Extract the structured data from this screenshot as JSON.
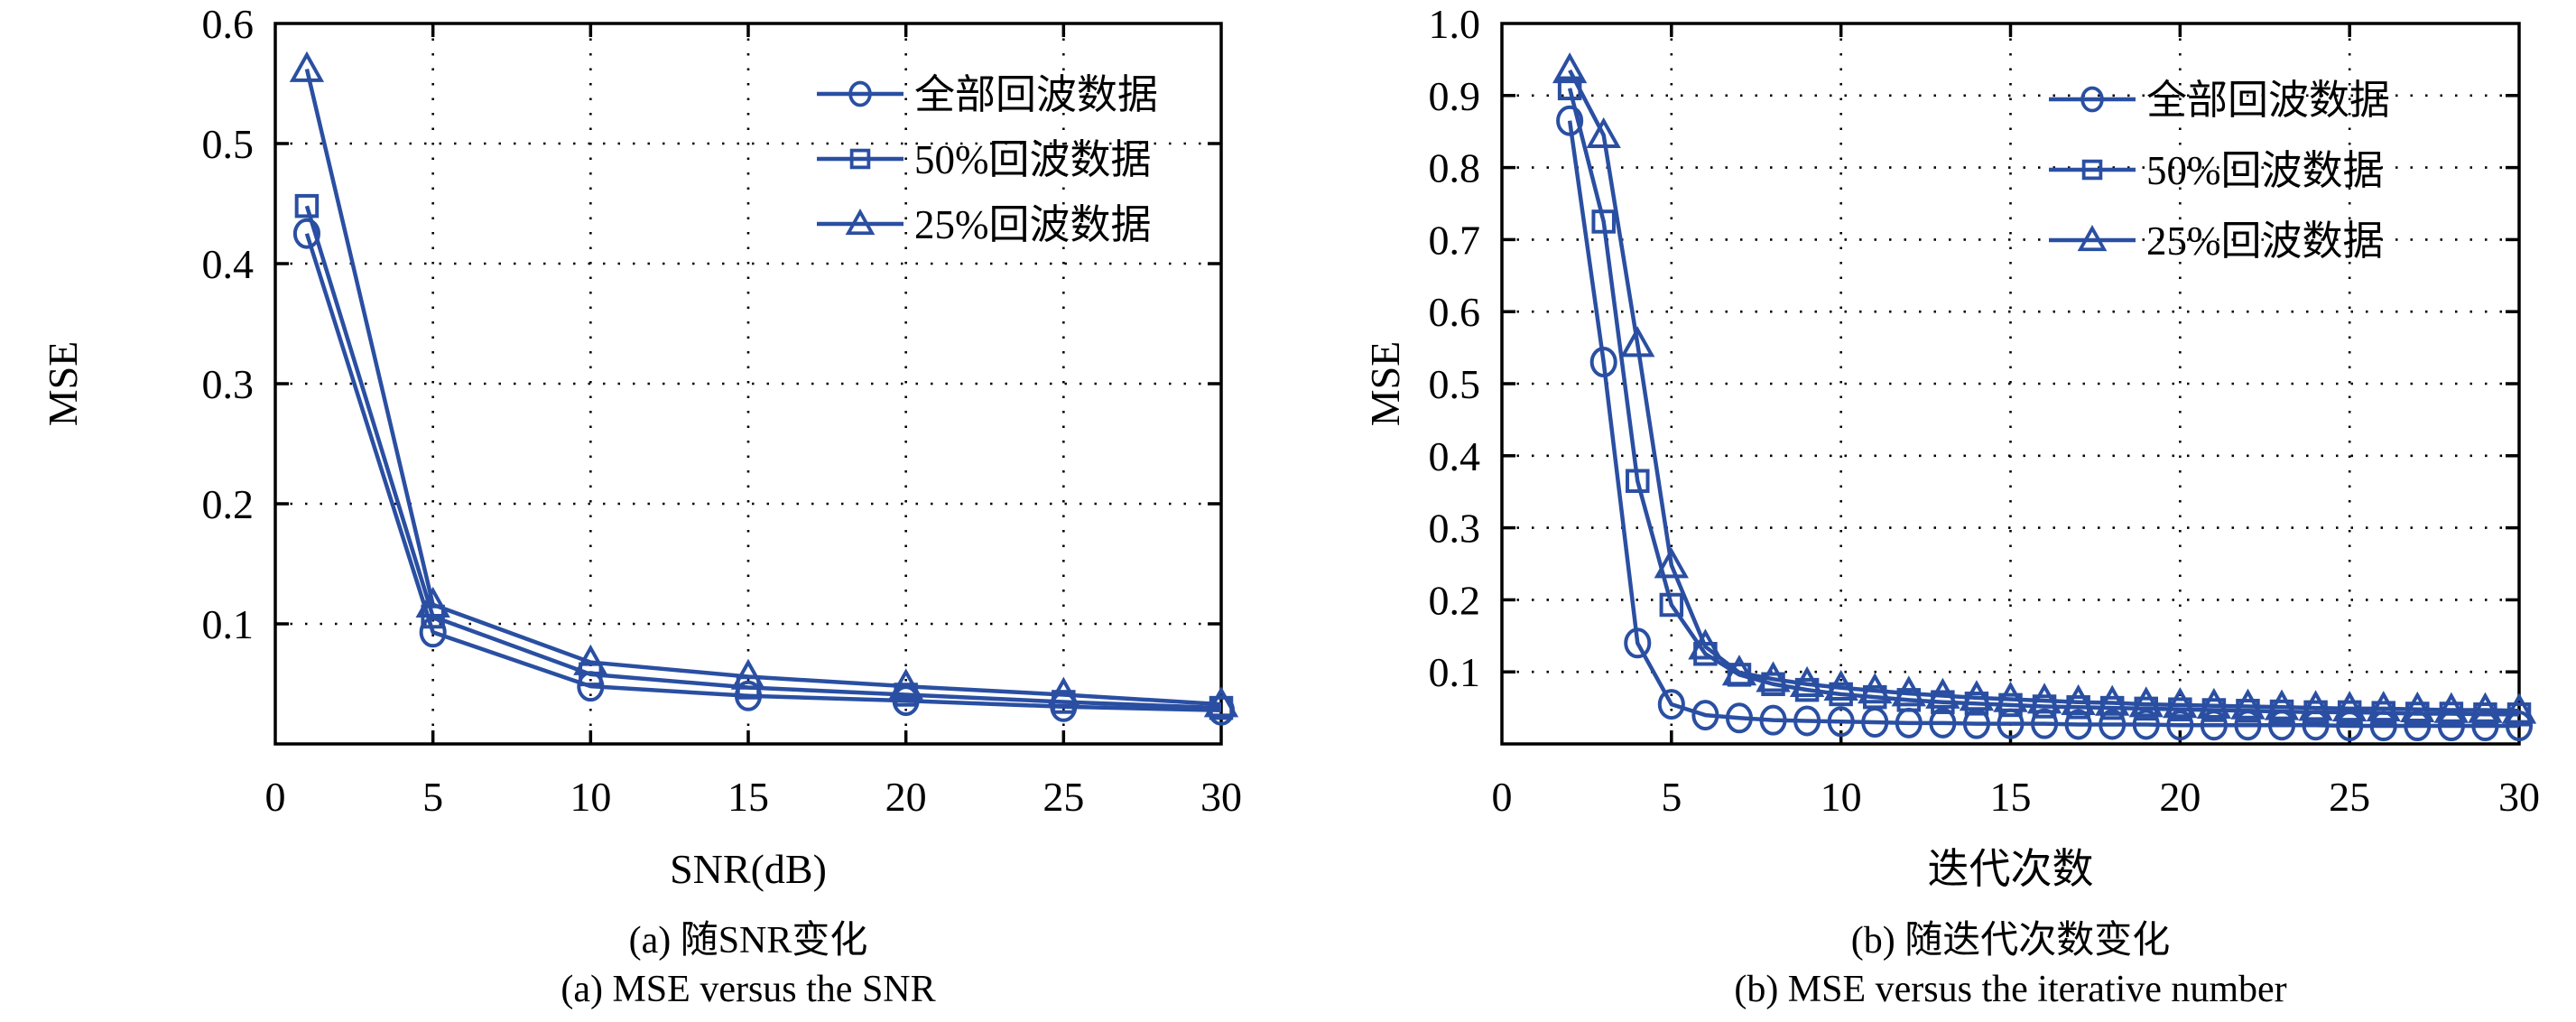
{
  "page": {
    "background": "#ffffff",
    "line_color": "#2a4fa2",
    "grid_color": "#000000",
    "text_color": "#000000"
  },
  "chart_data": [
    {
      "id": "a",
      "type": "line",
      "title": "",
      "xlabel": "SNR(dB)",
      "ylabel": "MSE",
      "xlim": [
        0,
        30
      ],
      "ylim": [
        0,
        0.6
      ],
      "x_ticks": [
        0,
        5,
        10,
        15,
        20,
        25,
        30
      ],
      "y_ticks": [
        0.1,
        0.2,
        0.3,
        0.4,
        0.5,
        0.6
      ],
      "y_tick_labels": [
        "0.1",
        "0.2",
        "0.3",
        "0.4",
        "0.5",
        "0.6"
      ],
      "grid": "dotted",
      "legend_position": "upper-right-inside-no-box",
      "x": [
        1,
        5,
        10,
        15,
        20,
        25,
        30
      ],
      "series": [
        {
          "name": "全部回波数据",
          "marker": "circle",
          "values": [
            0.425,
            0.093,
            0.048,
            0.04,
            0.036,
            0.031,
            0.028
          ]
        },
        {
          "name": "50%回波数据",
          "marker": "square",
          "values": [
            0.448,
            0.106,
            0.058,
            0.047,
            0.041,
            0.035,
            0.03
          ]
        },
        {
          "name": "25%回波数据",
          "marker": "triangle",
          "values": [
            0.562,
            0.116,
            0.068,
            0.056,
            0.048,
            0.041,
            0.033
          ]
        }
      ],
      "caption_zh": "(a) 随SNR变化",
      "caption_en": "(a) MSE versus the SNR"
    },
    {
      "id": "b",
      "type": "line",
      "title": "",
      "xlabel": "迭代次数",
      "ylabel": "MSE",
      "xlim": [
        0,
        30
      ],
      "ylim": [
        0,
        1.0
      ],
      "x_ticks": [
        0,
        5,
        10,
        15,
        20,
        25,
        30
      ],
      "y_ticks": [
        0.1,
        0.2,
        0.3,
        0.4,
        0.5,
        0.6,
        0.7,
        0.8,
        0.9,
        1.0
      ],
      "y_tick_labels": [
        "0.1",
        "0.2",
        "0.3",
        "0.4",
        "0.5",
        "0.6",
        "0.7",
        "0.8",
        "0.9",
        "1.0"
      ],
      "grid": "dotted",
      "legend_position": "upper-right-inside-no-box",
      "x": [
        2,
        3,
        4,
        5,
        6,
        7,
        8,
        9,
        10,
        11,
        12,
        13,
        14,
        15,
        16,
        17,
        18,
        19,
        20,
        21,
        22,
        23,
        24,
        25,
        26,
        27,
        28,
        29,
        30
      ],
      "series": [
        {
          "name": "全部回波数据",
          "marker": "circle",
          "values": [
            0.865,
            0.53,
            0.14,
            0.055,
            0.04,
            0.036,
            0.033,
            0.032,
            0.031,
            0.03,
            0.029,
            0.029,
            0.028,
            0.028,
            0.028,
            0.027,
            0.027,
            0.027,
            0.026,
            0.026,
            0.026,
            0.026,
            0.026,
            0.025,
            0.025,
            0.025,
            0.025,
            0.025,
            0.025
          ]
        },
        {
          "name": "50%回波数据",
          "marker": "square",
          "values": [
            0.91,
            0.725,
            0.365,
            0.193,
            0.125,
            0.096,
            0.083,
            0.075,
            0.069,
            0.065,
            0.061,
            0.058,
            0.056,
            0.054,
            0.052,
            0.051,
            0.05,
            0.049,
            0.048,
            0.047,
            0.046,
            0.045,
            0.044,
            0.044,
            0.043,
            0.042,
            0.042,
            0.041,
            0.041
          ]
        },
        {
          "name": "25%回波数据",
          "marker": "triangle",
          "values": [
            0.935,
            0.845,
            0.555,
            0.248,
            0.135,
            0.099,
            0.09,
            0.083,
            0.078,
            0.074,
            0.07,
            0.067,
            0.064,
            0.062,
            0.06,
            0.058,
            0.057,
            0.055,
            0.054,
            0.053,
            0.052,
            0.051,
            0.05,
            0.049,
            0.049,
            0.048,
            0.047,
            0.047,
            0.046
          ]
        }
      ],
      "caption_zh": "(b) 随迭代次数变化",
      "caption_en": "(b) MSE versus the iterative number"
    }
  ],
  "captions": {
    "a_zh": "(a) 随SNR变化",
    "a_en": "(a) MSE versus the SNR",
    "b_zh": "(b) 随迭代次数变化",
    "b_en": "(b) MSE versus the iterative number"
  }
}
